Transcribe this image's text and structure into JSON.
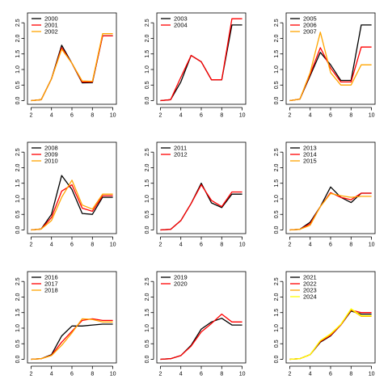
{
  "chart_data": [
    {
      "type": "line",
      "x": [
        2,
        3,
        4,
        5,
        6,
        7,
        8,
        9,
        10
      ],
      "xticks": [
        2,
        4,
        6,
        8,
        10
      ],
      "yticks": [
        "0.0",
        "0.5",
        "1.0",
        "1.5",
        "2.0",
        "2.5"
      ],
      "xlim": [
        2,
        10
      ],
      "ylim": [
        0,
        2.7
      ],
      "series": [
        {
          "name": "2000",
          "color": "#000000",
          "values": [
            0,
            0.03,
            0.7,
            1.78,
            1.2,
            0.57,
            0.58,
            2.08,
            2.08
          ]
        },
        {
          "name": "2001",
          "color": "#ff0000",
          "values": [
            0,
            0.03,
            0.7,
            1.7,
            1.2,
            0.6,
            0.6,
            2.08,
            2.08
          ]
        },
        {
          "name": "2002",
          "color": "#ffa500",
          "values": [
            0,
            0.03,
            0.7,
            1.65,
            1.2,
            0.63,
            0.62,
            2.15,
            2.15
          ]
        }
      ]
    },
    {
      "type": "line",
      "x": [
        2,
        3,
        4,
        5,
        6,
        7,
        8,
        9,
        10
      ],
      "xticks": [
        2,
        4,
        6,
        8,
        10
      ],
      "yticks": [
        "0.0",
        "0.5",
        "1.0",
        "1.5",
        "2.0",
        "2.5"
      ],
      "xlim": [
        2,
        10
      ],
      "ylim": [
        0,
        2.7
      ],
      "series": [
        {
          "name": "2003",
          "color": "#000000",
          "values": [
            0,
            0.03,
            0.6,
            1.45,
            1.25,
            0.67,
            0.67,
            2.43,
            2.43
          ]
        },
        {
          "name": "2004",
          "color": "#ff0000",
          "values": [
            0,
            0.03,
            0.75,
            1.45,
            1.25,
            0.67,
            0.67,
            2.63,
            2.63
          ]
        }
      ]
    },
    {
      "type": "line",
      "x": [
        2,
        3,
        4,
        5,
        6,
        7,
        8,
        9,
        10
      ],
      "xticks": [
        2,
        4,
        6,
        8,
        10
      ],
      "yticks": [
        "0.0",
        "0.5",
        "1.0",
        "1.5",
        "2.0",
        "2.5"
      ],
      "xlim": [
        2,
        10
      ],
      "ylim": [
        0,
        2.7
      ],
      "series": [
        {
          "name": "2005",
          "color": "#000000",
          "values": [
            0,
            0.05,
            0.8,
            1.55,
            1.15,
            0.65,
            0.65,
            2.43,
            2.43
          ]
        },
        {
          "name": "2006",
          "color": "#ff0000",
          "values": [
            0,
            0.05,
            0.85,
            1.7,
            1.05,
            0.6,
            0.6,
            1.72,
            1.72
          ]
        },
        {
          "name": "2007",
          "color": "#ffa500",
          "values": [
            0,
            0.05,
            0.9,
            2.2,
            0.9,
            0.5,
            0.5,
            1.15,
            1.15
          ]
        }
      ]
    },
    {
      "type": "line",
      "x": [
        2,
        3,
        4,
        5,
        6,
        7,
        8,
        9,
        10
      ],
      "xticks": [
        2,
        4,
        6,
        8,
        10
      ],
      "yticks": [
        "0.0",
        "0.5",
        "1.0",
        "1.5",
        "2.0",
        "2.5"
      ],
      "xlim": [
        2,
        10
      ],
      "ylim": [
        0,
        2.7
      ],
      "series": [
        {
          "name": "2008",
          "color": "#000000",
          "values": [
            0,
            0.03,
            0.5,
            1.75,
            1.3,
            0.53,
            0.5,
            1.05,
            1.05
          ]
        },
        {
          "name": "2009",
          "color": "#ff0000",
          "values": [
            0,
            0.03,
            0.4,
            1.25,
            1.45,
            0.7,
            0.6,
            1.1,
            1.1
          ]
        },
        {
          "name": "2010",
          "color": "#ffa500",
          "values": [
            0,
            0.03,
            0.3,
            1.05,
            1.6,
            0.8,
            0.67,
            1.15,
            1.15
          ]
        }
      ]
    },
    {
      "type": "line",
      "x": [
        2,
        3,
        4,
        5,
        6,
        7,
        8,
        9,
        10
      ],
      "xticks": [
        2,
        4,
        6,
        8,
        10
      ],
      "yticks": [
        "0.0",
        "0.5",
        "1.0",
        "1.5",
        "2.0",
        "2.5"
      ],
      "xlim": [
        2,
        10
      ],
      "ylim": [
        0,
        2.7
      ],
      "series": [
        {
          "name": "2011",
          "color": "#000000",
          "values": [
            0,
            0.02,
            0.3,
            0.85,
            1.5,
            0.87,
            0.72,
            1.15,
            1.15
          ]
        },
        {
          "name": "2012",
          "color": "#ff0000",
          "values": [
            0,
            0.02,
            0.3,
            0.85,
            1.45,
            0.95,
            0.75,
            1.22,
            1.22
          ]
        }
      ]
    },
    {
      "type": "line",
      "x": [
        2,
        3,
        4,
        5,
        6,
        7,
        8,
        9,
        10
      ],
      "xticks": [
        2,
        4,
        6,
        8,
        10
      ],
      "yticks": [
        "0.0",
        "0.5",
        "1.0",
        "1.5",
        "2.0",
        "2.5"
      ],
      "xlim": [
        2,
        10
      ],
      "ylim": [
        0,
        2.7
      ],
      "series": [
        {
          "name": "2013",
          "color": "#000000",
          "values": [
            0,
            0.02,
            0.25,
            0.75,
            1.38,
            1.05,
            0.88,
            1.18,
            1.18
          ]
        },
        {
          "name": "2014",
          "color": "#ff0000",
          "values": [
            0,
            0.02,
            0.2,
            0.75,
            1.2,
            1.05,
            0.97,
            1.18,
            1.18
          ]
        },
        {
          "name": "2015",
          "color": "#ffa500",
          "values": [
            0,
            0.02,
            0.15,
            0.75,
            1.17,
            1.1,
            1.05,
            1.08,
            1.08
          ]
        }
      ]
    },
    {
      "type": "line",
      "x": [
        2,
        3,
        4,
        5,
        6,
        7,
        8,
        9,
        10
      ],
      "xticks": [
        2,
        4,
        6,
        8,
        10
      ],
      "yticks": [
        "0.0",
        "0.5",
        "1.0",
        "1.5",
        "2.0",
        "2.5"
      ],
      "xlim": [
        2,
        10
      ],
      "ylim": [
        0,
        2.7
      ],
      "series": [
        {
          "name": "2016",
          "color": "#000000",
          "values": [
            0,
            0.02,
            0.15,
            0.75,
            1.07,
            1.07,
            1.1,
            1.13,
            1.13
          ]
        },
        {
          "name": "2017",
          "color": "#ff0000",
          "values": [
            0,
            0.02,
            0.13,
            0.55,
            0.9,
            1.25,
            1.3,
            1.25,
            1.25
          ]
        },
        {
          "name": "2018",
          "color": "#ffa500",
          "values": [
            0,
            0.02,
            0.12,
            0.45,
            0.85,
            1.3,
            1.28,
            1.2,
            1.2
          ]
        }
      ]
    },
    {
      "type": "line",
      "x": [
        2,
        3,
        4,
        5,
        6,
        7,
        8,
        9,
        10
      ],
      "xticks": [
        2,
        4,
        6,
        8,
        10
      ],
      "yticks": [
        "0.0",
        "0.5",
        "1.0",
        "1.5",
        "2.0",
        "2.5"
      ],
      "xlim": [
        2,
        10
      ],
      "ylim": [
        0,
        2.7
      ],
      "series": [
        {
          "name": "2019",
          "color": "#000000",
          "values": [
            0,
            0.02,
            0.12,
            0.45,
            0.97,
            1.2,
            1.32,
            1.1,
            1.1
          ]
        },
        {
          "name": "2020",
          "color": "#ff0000",
          "values": [
            0,
            0.02,
            0.12,
            0.42,
            0.88,
            1.15,
            1.45,
            1.2,
            1.2
          ]
        }
      ]
    },
    {
      "type": "line",
      "x": [
        2,
        3,
        4,
        5,
        6,
        7,
        8,
        9,
        10
      ],
      "xticks": [
        2,
        4,
        6,
        8,
        10
      ],
      "yticks": [
        "0.0",
        "0.5",
        "1.0",
        "1.5",
        "2.0",
        "2.5"
      ],
      "xlim": [
        2,
        10
      ],
      "ylim": [
        0,
        2.7
      ],
      "series": [
        {
          "name": "2021",
          "color": "#000000",
          "values": [
            0,
            0.02,
            0.15,
            0.55,
            0.75,
            1.1,
            1.55,
            1.45,
            1.45
          ]
        },
        {
          "name": "2022",
          "color": "#ff0000",
          "values": [
            0,
            0.02,
            0.15,
            0.57,
            0.77,
            1.1,
            1.58,
            1.5,
            1.5
          ]
        },
        {
          "name": "2023",
          "color": "#ffa500",
          "values": [
            0,
            0.02,
            0.15,
            0.6,
            0.8,
            1.12,
            1.6,
            1.38,
            1.38
          ]
        },
        {
          "name": "2024",
          "color": "#ffff00",
          "values": [
            0,
            0.02,
            0.15,
            0.6,
            0.82,
            1.12,
            1.62,
            1.4,
            1.4
          ]
        }
      ]
    }
  ]
}
